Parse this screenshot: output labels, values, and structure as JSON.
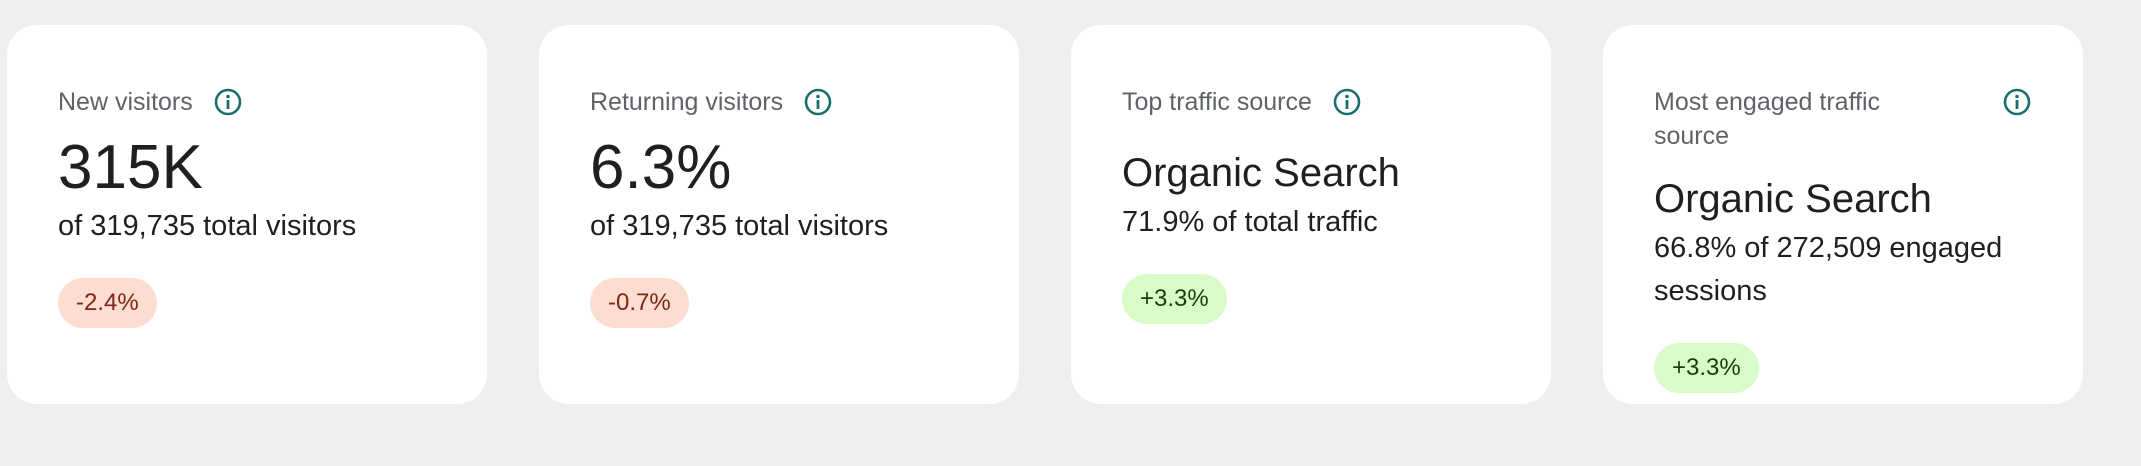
{
  "cards": [
    {
      "label": "New visitors",
      "value": "315K",
      "subtitle": "of 319,735 total visitors",
      "change": "-2.4%"
    },
    {
      "label": "Returning visitors",
      "value": "6.3%",
      "subtitle": "of 319,735 total visitors",
      "change": "-0.7%"
    },
    {
      "label": "Top traffic source",
      "value": "Organic Search",
      "subtitle": "71.9% of total traffic",
      "change": "+3.3%"
    },
    {
      "label": "Most engaged traffic source",
      "value": "Organic Search",
      "subtitle": "66.8% of 272,509 engaged sessions",
      "change": "+3.3%"
    }
  ]
}
